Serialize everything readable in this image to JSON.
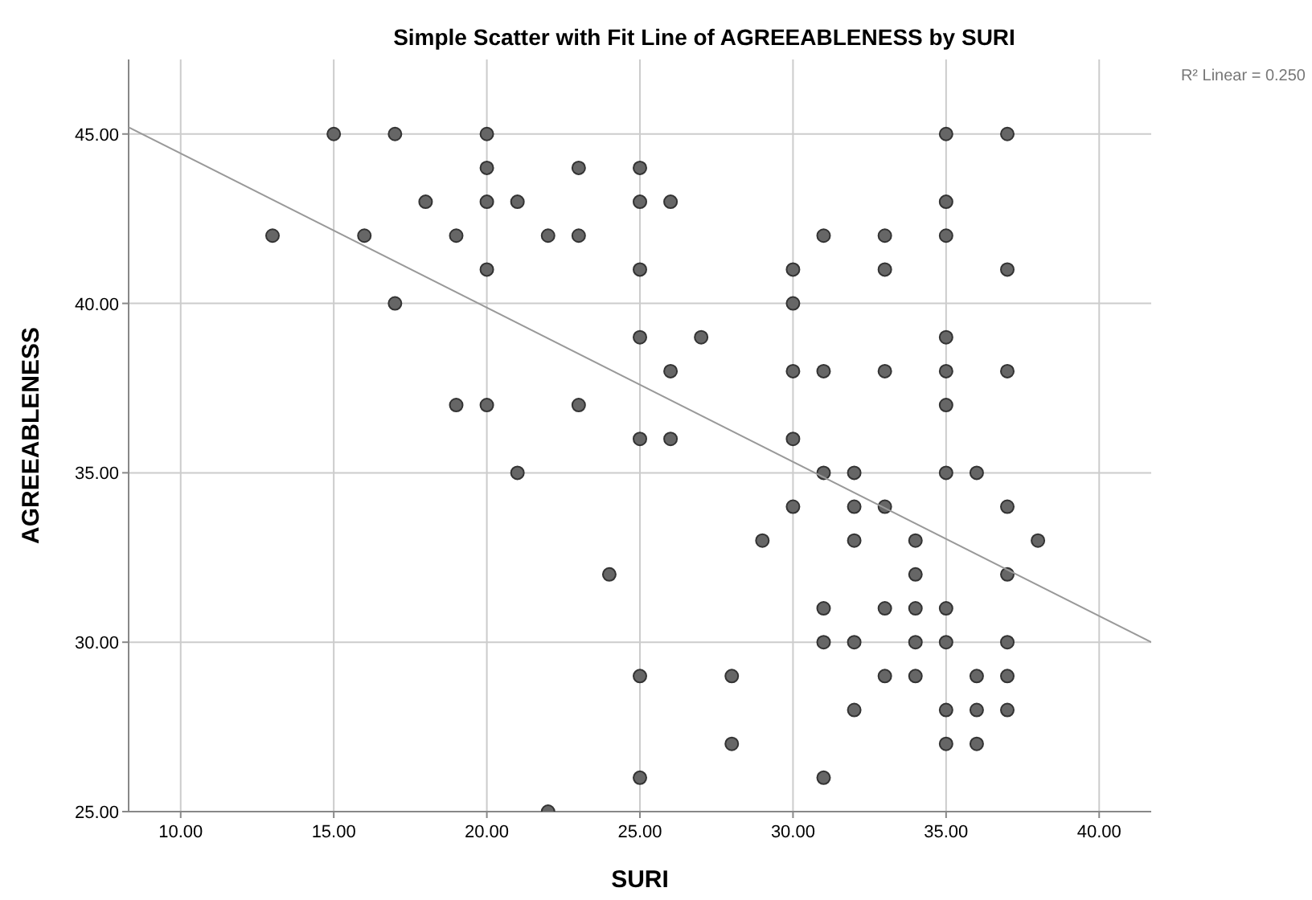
{
  "chart_data": {
    "type": "scatter",
    "title": "Simple Scatter with Fit Line of AGREEABLENESS by SURI",
    "xlabel": "SURI",
    "ylabel": "AGREEABLENESS",
    "annotations": [
      "R² Linear = 0.250"
    ],
    "xlim": [
      8.3,
      41.7
    ],
    "ylim": [
      25,
      47.2
    ],
    "xticks": [
      {
        "value": 10,
        "label": "10.00"
      },
      {
        "value": 15,
        "label": "15.00"
      },
      {
        "value": 20,
        "label": "20.00"
      },
      {
        "value": 25,
        "label": "25.00"
      },
      {
        "value": 30,
        "label": "30.00"
      },
      {
        "value": 35,
        "label": "35.00"
      },
      {
        "value": 40,
        "label": "40.00"
      }
    ],
    "yticks": [
      {
        "value": 25,
        "label": "25.00"
      },
      {
        "value": 30,
        "label": "30.00"
      },
      {
        "value": 35,
        "label": "35.00"
      },
      {
        "value": 40,
        "label": "40.00"
      },
      {
        "value": 45,
        "label": "45.00"
      }
    ],
    "grid": true,
    "marker": "circle",
    "series": [
      {
        "color": "#666666",
        "x": [
          15,
          17,
          20,
          35,
          37,
          20,
          23,
          25,
          18,
          20,
          21,
          25,
          26,
          35,
          13,
          16,
          19,
          22,
          23,
          31,
          33,
          35,
          20,
          25,
          30,
          33,
          37,
          17,
          30,
          25,
          27,
          35,
          26,
          30,
          31,
          33,
          35,
          37,
          19,
          20,
          23,
          35,
          25,
          26,
          30,
          21,
          31,
          32,
          35,
          36,
          30,
          32,
          33,
          37,
          29,
          32,
          34,
          38,
          24,
          34,
          37,
          31,
          33,
          34,
          35,
          31,
          32,
          34,
          35,
          37,
          25,
          28,
          33,
          34,
          36,
          37,
          32,
          35,
          36,
          37,
          28,
          35,
          36,
          25,
          31,
          22
        ],
        "values": [
          45,
          45,
          45,
          45,
          45,
          44,
          44,
          44,
          43,
          43,
          43,
          43,
          43,
          43,
          42,
          42,
          42,
          42,
          42,
          42,
          42,
          42,
          41,
          41,
          41,
          41,
          41,
          40,
          40,
          39,
          39,
          39,
          38,
          38,
          38,
          38,
          38,
          38,
          37,
          37,
          37,
          37,
          36,
          36,
          36,
          35,
          35,
          35,
          35,
          35,
          34,
          34,
          34,
          34,
          33,
          33,
          33,
          33,
          32,
          32,
          32,
          31,
          31,
          31,
          31,
          30,
          30,
          30,
          30,
          30,
          29,
          29,
          29,
          29,
          29,
          29,
          28,
          28,
          28,
          28,
          27,
          27,
          27,
          26,
          26,
          25
        ]
      },
      {
        "type": "line",
        "color": "#999999",
        "marker": "none",
        "x": [
          8.3,
          41.7
        ],
        "values": [
          45.2,
          30.0
        ]
      }
    ]
  }
}
